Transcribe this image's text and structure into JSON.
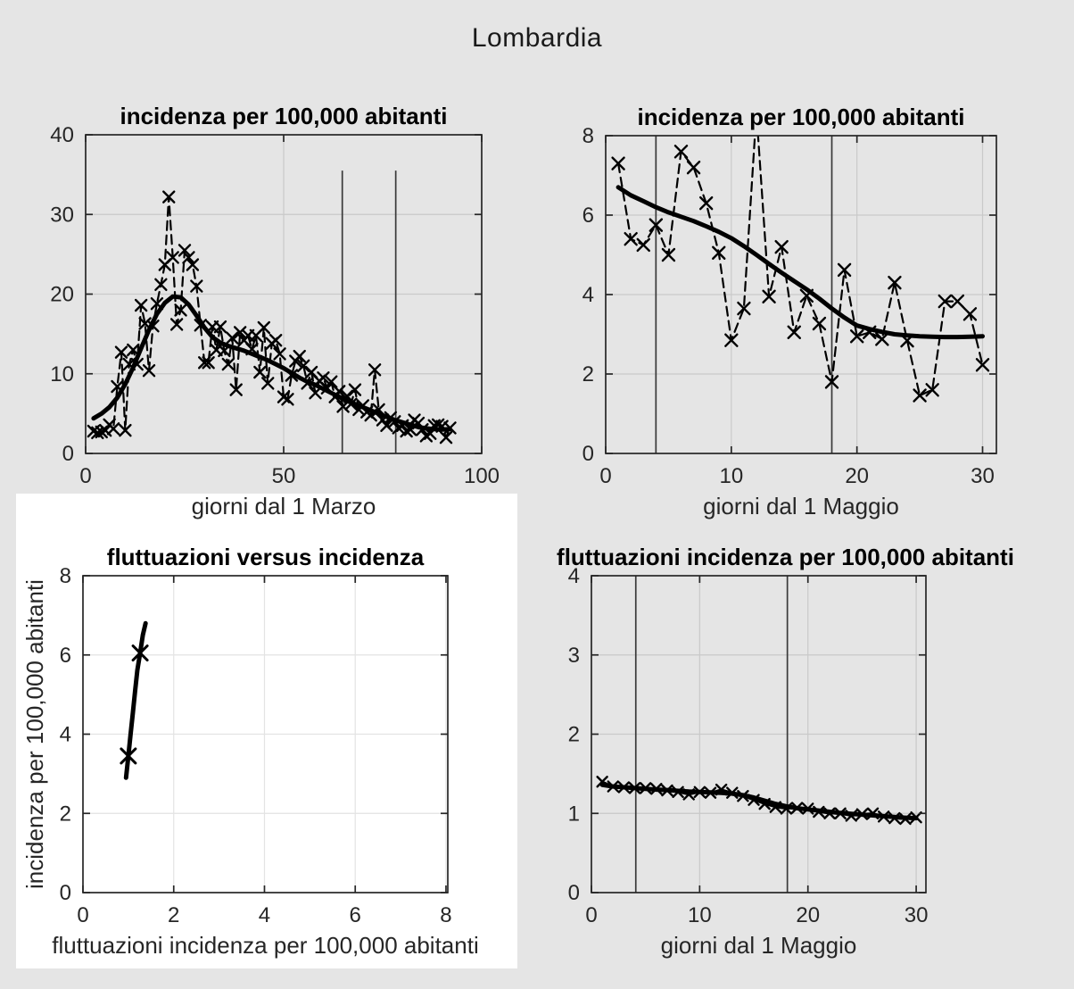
{
  "figure": {
    "title": "Lombardia"
  },
  "colors": {
    "background": "#E5E5E5",
    "white_panel": "#FFFFFF",
    "axis": "#262626",
    "text": "#262626",
    "grid_on_gray": "#C9C9C9",
    "grid_on_white": "#E3E3E3",
    "event_line": "#3A3A3A",
    "series": "#000000"
  },
  "chart_data": [
    {
      "id": "marzo_incidenza",
      "type": "line",
      "title": "incidenza per 100,000 abitanti",
      "xlabel": "giorni dal 1 Marzo",
      "ylabel": "",
      "xlim": [
        0,
        100
      ],
      "ylim": [
        0,
        40
      ],
      "xticks": [
        0,
        50,
        100
      ],
      "yticks": [
        0,
        10,
        20,
        30,
        40
      ],
      "grid": true,
      "background": "gray",
      "vlines": [
        {
          "x": 64.8,
          "y_top": 35.5
        },
        {
          "x": 78.3,
          "y_top": 35.5
        }
      ],
      "series": [
        {
          "name": "dati-giornalieri",
          "role": "data",
          "line": "dashed",
          "marker": "x",
          "marker_size": 6,
          "x": [
            2,
            3,
            4,
            5,
            6,
            7,
            8,
            9,
            10,
            11,
            12,
            13,
            14,
            15,
            16,
            17,
            18,
            19,
            20,
            21,
            22,
            23,
            24,
            25,
            26,
            27,
            28,
            29,
            30,
            31,
            32,
            33,
            34,
            35,
            36,
            37,
            38,
            39,
            40,
            41,
            42,
            43,
            44,
            45,
            46,
            47,
            48,
            49,
            50,
            51,
            52,
            53,
            54,
            55,
            56,
            57,
            58,
            59,
            60,
            61,
            62,
            63,
            64,
            65,
            66,
            67,
            68,
            69,
            70,
            71,
            72,
            73,
            74,
            75,
            76,
            77,
            78,
            79,
            80,
            81,
            82,
            83,
            84,
            85,
            86,
            87,
            88,
            89,
            90,
            91,
            92
          ],
          "y": [
            2.8,
            2.6,
            2.7,
            2.9,
            3.6,
            3.1,
            8.4,
            12.7,
            2.9,
            11.2,
            13.0,
            11.2,
            18.6,
            16.3,
            10.4,
            16.0,
            18.8,
            21.2,
            23.7,
            32.2,
            24.6,
            16.2,
            18.0,
            25.5,
            24.6,
            23.7,
            21.0,
            16.1,
            11.4,
            11.4,
            15.9,
            13.0,
            15.9,
            12.9,
            11.2,
            14.5,
            8.0,
            15.2,
            14.2,
            14.8,
            13.1,
            14.8,
            10.2,
            15.8,
            8.8,
            13.8,
            14.2,
            12.5,
            7.1,
            6.8,
            9.8,
            11.6,
            12.2,
            11.0,
            8.8,
            10.2,
            7.6,
            9.1,
            9.5,
            8.2,
            9.0,
            7.1,
            7.8,
            5.9,
            7.2,
            6.2,
            8.0,
            5.5,
            6.0,
            5.2,
            4.8,
            10.5,
            5.5,
            4.2,
            3.5,
            4.5,
            4.0,
            3.2,
            3.5,
            2.8,
            3.0,
            4.2,
            3.8,
            3.0,
            2.2,
            2.5,
            3.5,
            3.6,
            3.4,
            2.0,
            3.2
          ]
        },
        {
          "name": "curva-levigata",
          "role": "fit",
          "line": "solid",
          "marker": "none",
          "x": [
            2,
            4,
            6,
            8,
            10,
            12,
            14,
            16,
            18,
            20,
            22,
            24,
            26,
            28,
            30,
            32,
            34,
            36,
            38,
            40,
            42,
            44,
            46,
            48,
            50,
            52,
            54,
            56,
            58,
            60,
            62,
            64,
            66,
            68,
            70,
            72,
            74,
            76,
            78,
            80,
            82,
            84,
            86,
            88,
            90,
            92
          ],
          "y": [
            4.4,
            5.0,
            5.8,
            7.0,
            8.7,
            10.8,
            13.2,
            15.5,
            17.5,
            18.9,
            19.7,
            19.6,
            18.7,
            17.3,
            15.8,
            14.6,
            13.9,
            13.5,
            13.2,
            12.9,
            12.5,
            12.1,
            11.7,
            11.2,
            10.7,
            10.1,
            9.5,
            9.0,
            8.6,
            8.1,
            7.6,
            7.1,
            6.6,
            6.2,
            5.8,
            5.4,
            5.0,
            4.6,
            4.2,
            3.9,
            3.6,
            3.3,
            3.15,
            3.05,
            3.0,
            3.05
          ]
        }
      ]
    },
    {
      "id": "maggio_incidenza",
      "type": "line",
      "title": "incidenza per 100,000 abitanti",
      "xlabel": "giorni dal 1 Maggio",
      "ylabel": "",
      "xlim": [
        0,
        31.1
      ],
      "ylim": [
        0,
        8
      ],
      "xticks": [
        0,
        10,
        20,
        30
      ],
      "yticks": [
        0,
        2,
        4,
        6,
        8
      ],
      "grid": true,
      "background": "gray",
      "vlines": [
        {
          "x": 4.0
        },
        {
          "x": 18.0
        }
      ],
      "series": [
        {
          "name": "dati-giornalieri",
          "role": "data",
          "line": "dashed",
          "marker": "x",
          "marker_size": 6.5,
          "x": [
            1,
            2,
            3,
            4,
            5,
            6,
            7,
            8,
            9,
            10,
            11,
            12,
            13,
            14,
            15,
            16,
            17,
            18,
            19,
            20,
            21,
            22,
            23,
            24,
            25,
            26,
            27,
            28,
            29,
            30
          ],
          "y": [
            7.3,
            5.4,
            5.25,
            5.75,
            5.0,
            7.6,
            7.2,
            6.3,
            5.05,
            2.85,
            3.65,
            8.6,
            3.95,
            5.2,
            3.05,
            3.97,
            3.27,
            1.8,
            4.62,
            2.95,
            3.05,
            2.88,
            4.3,
            2.84,
            1.46,
            1.6,
            3.83,
            3.83,
            3.51,
            2.23
          ]
        },
        {
          "name": "curva-levigata",
          "role": "fit",
          "line": "solid",
          "marker": "none",
          "x": [
            1,
            2,
            3,
            4,
            5,
            6,
            7,
            8,
            9,
            10,
            11,
            12,
            13,
            14,
            15,
            16,
            17,
            18,
            19,
            20,
            21,
            22,
            23,
            24,
            25,
            26,
            27,
            28,
            29,
            30
          ],
          "y": [
            6.7,
            6.5,
            6.35,
            6.2,
            6.07,
            5.96,
            5.85,
            5.72,
            5.58,
            5.42,
            5.22,
            5.0,
            4.77,
            4.55,
            4.34,
            4.13,
            3.9,
            3.65,
            3.42,
            3.22,
            3.13,
            3.06,
            3.0,
            2.97,
            2.95,
            2.94,
            2.93,
            2.93,
            2.94,
            2.95
          ]
        }
      ]
    },
    {
      "id": "fluttuazioni_vs_incidenza",
      "type": "line",
      "title": "fluttuazioni versus incidenza",
      "xlabel": "fluttuazioni incidenza per 100,000 abitanti",
      "ylabel": "incidenza per 100,000 abitanti",
      "xlim": [
        0,
        8.04
      ],
      "ylim": [
        0,
        8
      ],
      "xticks": [
        0,
        2,
        4,
        6,
        8
      ],
      "yticks": [
        0,
        2,
        4,
        6,
        8
      ],
      "grid": true,
      "background": "white",
      "vlines": [],
      "series": [
        {
          "name": "relazione-fluttuazioni-incidenza",
          "role": "fit",
          "line": "solid",
          "marker": "none",
          "x": [
            0.95,
            1.0,
            1.05,
            1.1,
            1.15,
            1.2,
            1.26,
            1.32,
            1.38
          ],
          "y": [
            2.9,
            3.45,
            4.0,
            4.55,
            5.1,
            5.62,
            6.05,
            6.5,
            6.8
          ]
        },
        {
          "name": "punti-misurati",
          "role": "data",
          "line": "none",
          "marker": "x",
          "marker_size": 8,
          "x": [
            1.0,
            1.26
          ],
          "y": [
            3.45,
            6.05
          ]
        }
      ]
    },
    {
      "id": "maggio_fluttuazioni",
      "type": "line",
      "title": "fluttuazioni incidenza per 100,000 abitanti",
      "xlabel": "giorni dal 1 Maggio",
      "ylabel": "",
      "xlim": [
        0,
        30.9
      ],
      "ylim": [
        0,
        4
      ],
      "xticks": [
        0,
        10,
        20,
        30
      ],
      "yticks": [
        0,
        1,
        2,
        3,
        4
      ],
      "grid": true,
      "background": "gray",
      "vlines": [
        {
          "x": 4.1
        },
        {
          "x": 18.1
        }
      ],
      "series": [
        {
          "name": "fluttuazioni-giornaliere",
          "role": "data",
          "line": "solid-thin",
          "marker": "x",
          "marker_size": 5.5,
          "x": [
            1,
            2,
            3,
            4,
            5,
            6,
            7,
            8,
            9,
            10,
            11,
            12,
            13,
            14,
            15,
            16,
            17,
            18,
            19,
            20,
            21,
            22,
            23,
            24,
            25,
            26,
            27,
            28,
            29,
            30
          ],
          "y": [
            1.4,
            1.34,
            1.33,
            1.32,
            1.32,
            1.31,
            1.29,
            1.27,
            1.24,
            1.27,
            1.26,
            1.3,
            1.26,
            1.22,
            1.17,
            1.12,
            1.08,
            1.06,
            1.07,
            1.06,
            1.02,
            1.0,
            1.0,
            0.97,
            0.99,
            1.0,
            0.96,
            0.94,
            0.93,
            0.95
          ]
        },
        {
          "name": "curva-levigata",
          "role": "fit",
          "line": "solid",
          "marker": "none",
          "x": [
            1,
            2,
            3,
            4,
            5,
            6,
            7,
            8,
            9,
            10,
            11,
            12,
            13,
            14,
            15,
            16,
            17,
            18,
            19,
            20,
            21,
            22,
            23,
            24,
            25,
            26,
            27,
            28,
            29,
            30
          ],
          "y": [
            1.36,
            1.34,
            1.33,
            1.32,
            1.31,
            1.3,
            1.295,
            1.285,
            1.275,
            1.27,
            1.265,
            1.26,
            1.25,
            1.23,
            1.2,
            1.16,
            1.12,
            1.09,
            1.065,
            1.05,
            1.035,
            1.02,
            1.005,
            0.995,
            0.985,
            0.975,
            0.965,
            0.955,
            0.945,
            0.94
          ]
        }
      ]
    }
  ]
}
